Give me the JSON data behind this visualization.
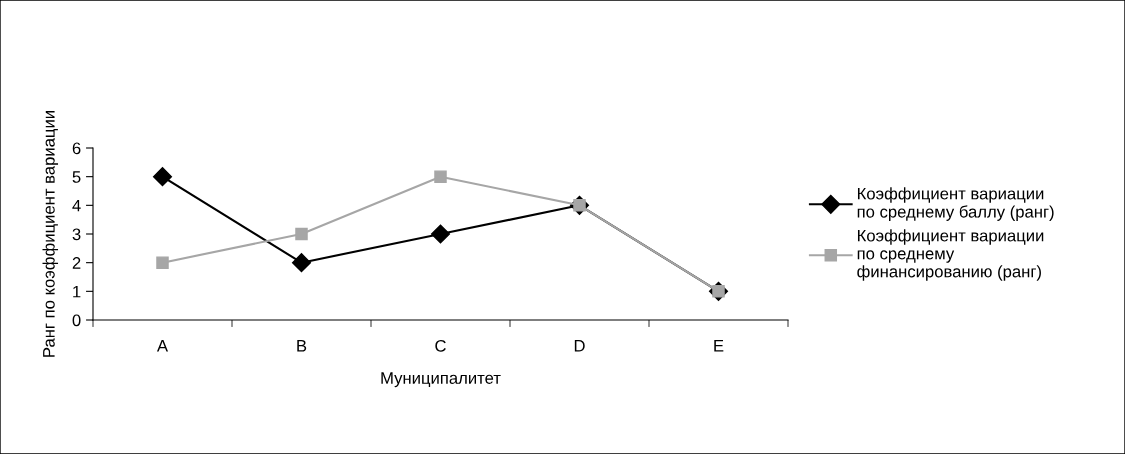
{
  "chart_data": {
    "type": "line",
    "xlabel": "Муниципалитет",
    "ylabel": "Ранг по коэффициент вариации",
    "categories": [
      "A",
      "B",
      "C",
      "D",
      "E"
    ],
    "series": [
      {
        "name": "Коэффициент вариации\nпо среднему баллу (ранг)",
        "color": "#000000",
        "marker": "diamond",
        "values": [
          5,
          2,
          3,
          4,
          1
        ]
      },
      {
        "name": "Коэффициент вариации\nпо среднему\nфинансированию (ранг)",
        "color": "#a6a6a6",
        "marker": "square",
        "values": [
          2,
          3,
          5,
          4,
          1
        ]
      }
    ],
    "ylim": [
      0,
      6
    ],
    "yticks": [
      0,
      1,
      2,
      3,
      4,
      5,
      6
    ],
    "grid": false,
    "legend": "right",
    "line_style": "solid"
  }
}
